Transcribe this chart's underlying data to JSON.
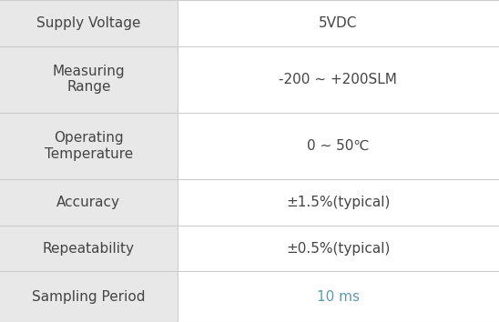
{
  "rows": [
    {
      "label": "Supply Voltage",
      "value": "5VDC",
      "value_color": "#444444",
      "lines": 1
    },
    {
      "label": "Measuring\nRange",
      "value": "-200 ~ +200SLM",
      "value_color": "#444444",
      "lines": 2
    },
    {
      "label": "Operating\nTemperature",
      "value": "0 ~ 50℃",
      "value_color": "#444444",
      "lines": 2
    },
    {
      "label": "Accuracy",
      "value": "±1.5%(typical)",
      "value_color": "#444444",
      "lines": 1
    },
    {
      "label": "Repeatability",
      "value": "±0.5%(typical)",
      "value_color": "#444444",
      "lines": 1
    },
    {
      "label": "Sampling Period",
      "value": "10 ms",
      "value_color": "#5b9aab",
      "lines": 1
    }
  ],
  "col_split": 0.355,
  "bg_color_left": "#e8e8e8",
  "bg_color_right": "#ffffff",
  "line_color": "#cccccc",
  "label_color": "#444444",
  "label_fontsize": 11.0,
  "value_fontsize": 11.0,
  "fig_bg": "#e0e0e0",
  "row_heights": [
    1.0,
    1.45,
    1.45,
    1.0,
    1.0,
    1.1
  ]
}
